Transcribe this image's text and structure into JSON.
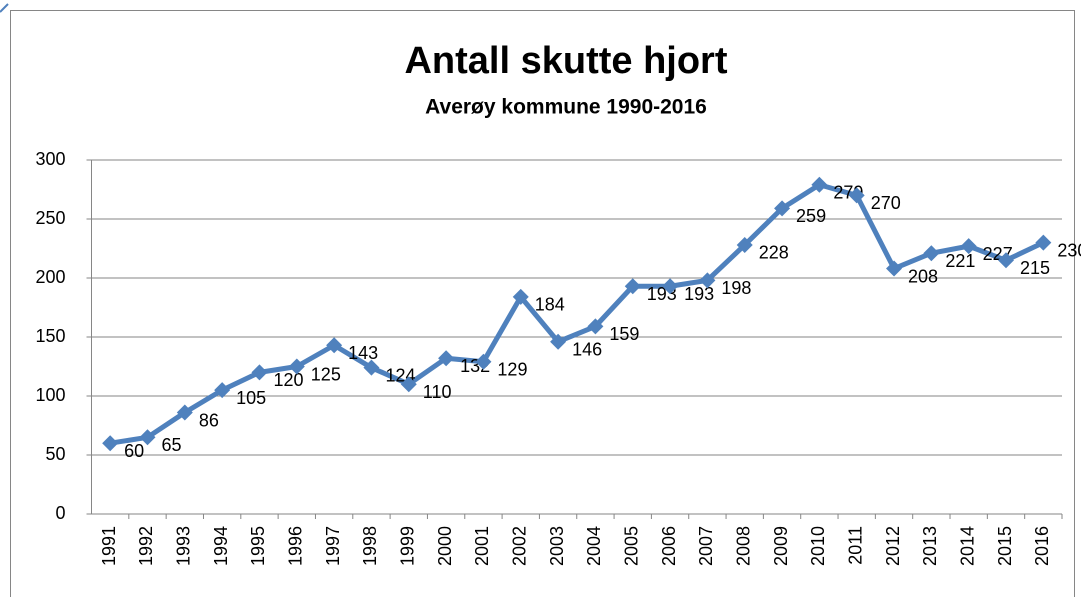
{
  "chart_data": {
    "type": "line",
    "title": "Antall skutte hjort",
    "subtitle": "Averøy kommune 1990-2016",
    "categories": [
      "1991",
      "1992",
      "1993",
      "1994",
      "1995",
      "1996",
      "1997",
      "1998",
      "1999",
      "2000",
      "2001",
      "2002",
      "2003",
      "2004",
      "2005",
      "2006",
      "2007",
      "2008",
      "2009",
      "2010",
      "2011",
      "2012",
      "2013",
      "2014",
      "2015",
      "2016"
    ],
    "values": [
      60,
      65,
      86,
      105,
      120,
      125,
      143,
      124,
      110,
      132,
      129,
      184,
      146,
      159,
      193,
      193,
      198,
      228,
      259,
      279,
      270,
      208,
      221,
      227,
      215,
      230
    ],
    "color": "#4f81bd",
    "ylim": [
      0,
      300
    ],
    "yticks": [
      0,
      50,
      100,
      150,
      200,
      250,
      300
    ],
    "grid": true
  }
}
